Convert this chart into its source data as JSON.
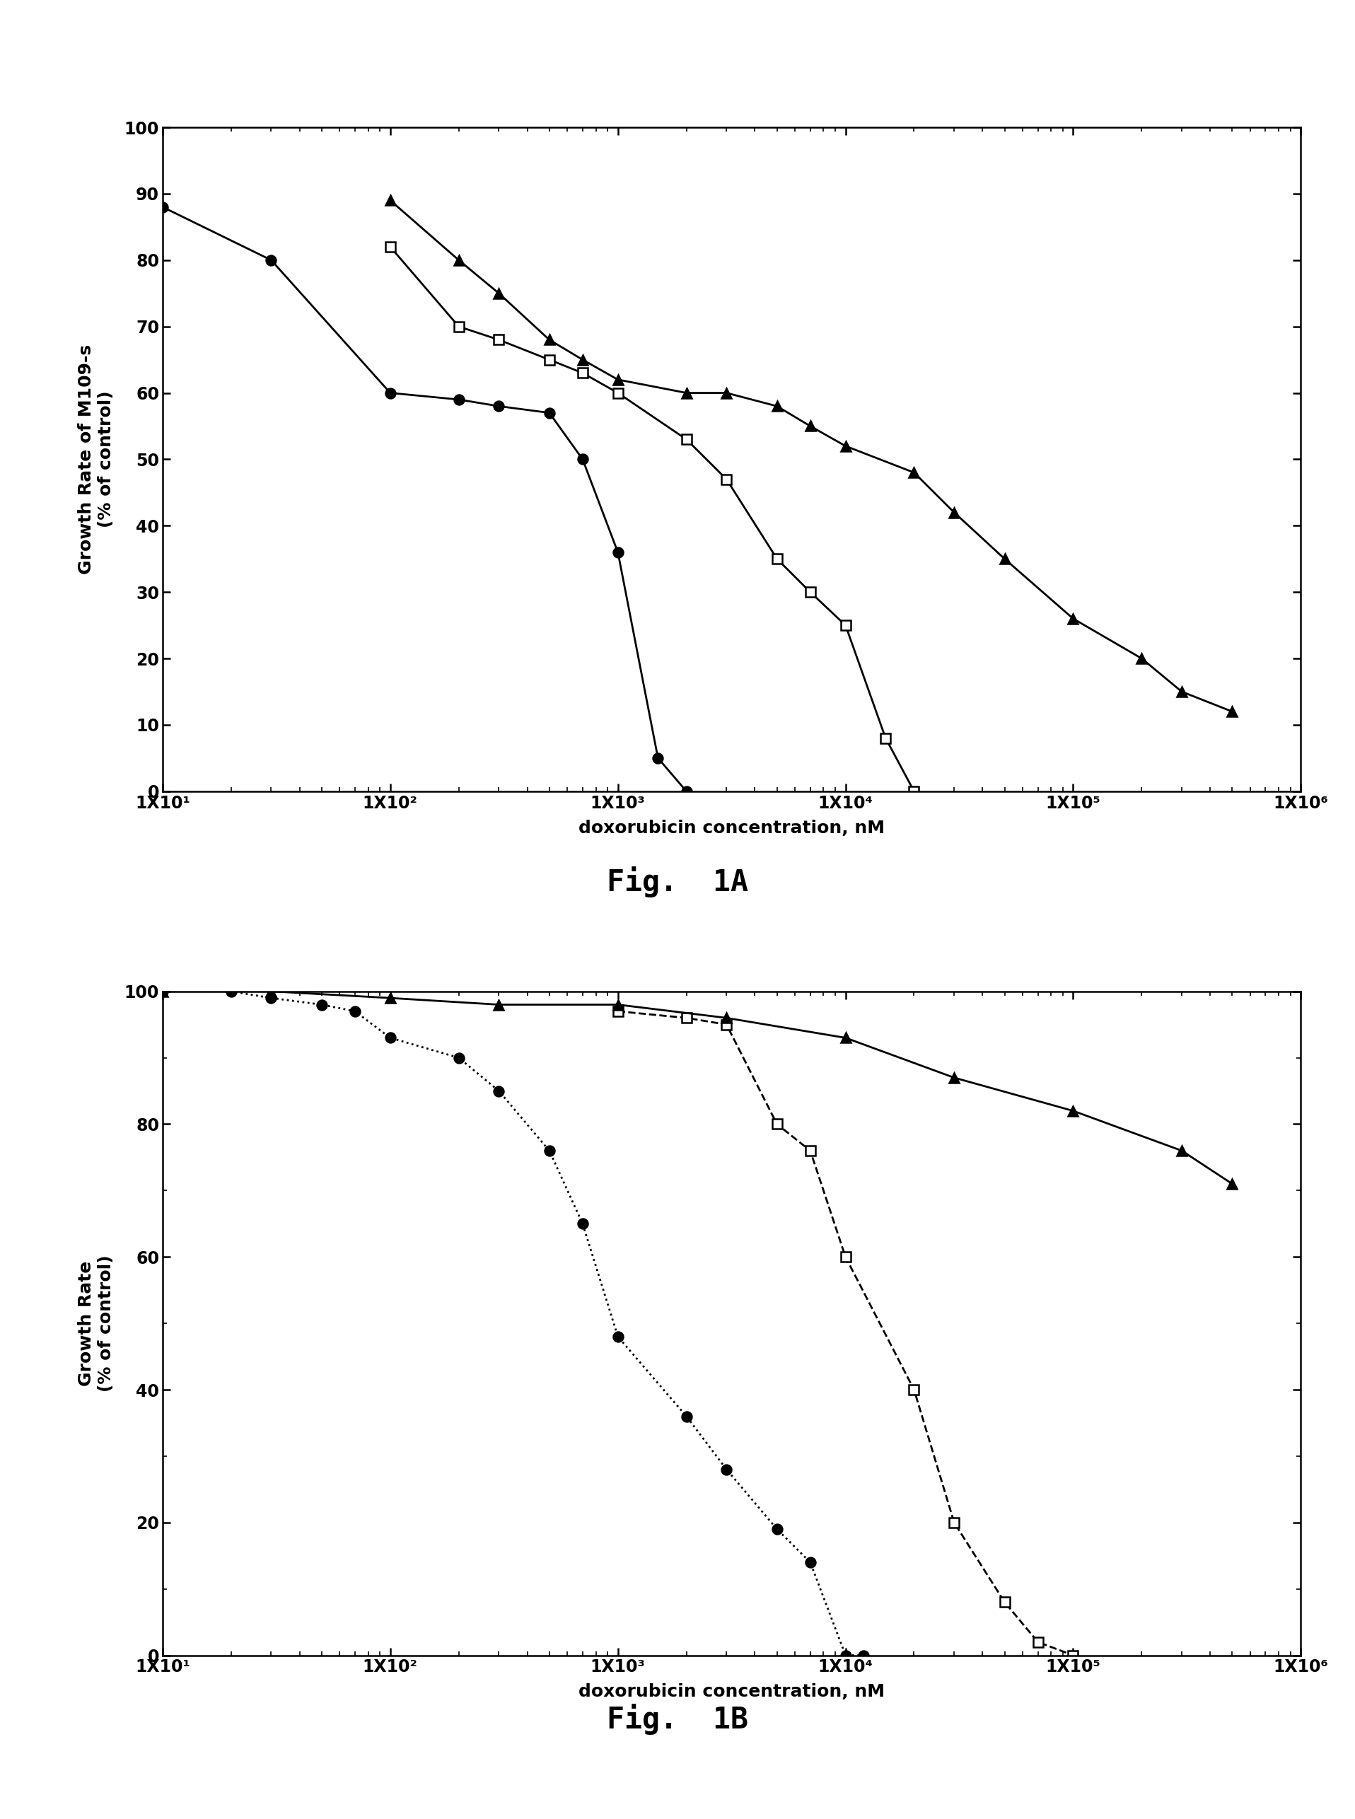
{
  "figA": {
    "title": "Fig.  1A",
    "ylabel": "Growth Rate of M109-s\n(% of control)",
    "xlabel": "doxorubicin concentration, nM",
    "ylim": [
      0,
      100
    ],
    "xlim": [
      10,
      1000000
    ],
    "yticks": [
      0,
      10,
      20,
      30,
      40,
      50,
      60,
      70,
      80,
      90,
      100
    ],
    "xtick_labels": [
      "1X10¹",
      "1X10²",
      "1X10³",
      "1X10⁴",
      "1X10⁵",
      "1X10⁶"
    ],
    "xtick_vals": [
      10,
      100,
      1000,
      10000,
      100000,
      1000000
    ],
    "series": [
      {
        "x": [
          10,
          30,
          100,
          200,
          300,
          500,
          700,
          1000,
          1500,
          2000
        ],
        "y": [
          88,
          80,
          60,
          59,
          58,
          57,
          50,
          36,
          5,
          0
        ],
        "marker": "o",
        "fillstyle": "full",
        "color": "black",
        "linestyle": "-",
        "markersize": 10
      },
      {
        "x": [
          100,
          200,
          300,
          500,
          700,
          1000,
          2000,
          3000,
          5000,
          7000,
          10000,
          15000,
          20000
        ],
        "y": [
          82,
          70,
          68,
          65,
          63,
          60,
          53,
          47,
          35,
          30,
          25,
          8,
          0
        ],
        "marker": "s",
        "fillstyle": "none",
        "color": "black",
        "linestyle": "-",
        "markersize": 10
      },
      {
        "x": [
          100,
          200,
          300,
          500,
          700,
          1000,
          2000,
          3000,
          5000,
          7000,
          10000,
          20000,
          30000,
          50000,
          100000,
          200000,
          300000,
          500000
        ],
        "y": [
          89,
          80,
          75,
          68,
          65,
          62,
          60,
          60,
          58,
          55,
          52,
          48,
          42,
          35,
          26,
          20,
          15,
          12
        ],
        "marker": "^",
        "fillstyle": "full",
        "color": "black",
        "linestyle": "-",
        "markersize": 10
      }
    ]
  },
  "figB": {
    "title": "Fig.  1B",
    "ylabel": "Growth Rate\n(% of control)",
    "xlabel": "doxorubicin concentration, nM",
    "ylim": [
      0,
      100
    ],
    "xlim": [
      10,
      1000000
    ],
    "yticks": [
      0,
      20,
      40,
      60,
      80,
      100
    ],
    "xtick_labels": [
      "1X10¹",
      "1X10²",
      "1X10³",
      "1X10⁴",
      "1X10⁵",
      "1X10⁶"
    ],
    "xtick_vals": [
      10,
      100,
      1000,
      10000,
      100000,
      1000000
    ],
    "series": [
      {
        "x": [
          10,
          20,
          30,
          50,
          70,
          100,
          200,
          300,
          500,
          700,
          1000,
          2000,
          3000,
          5000,
          7000,
          10000,
          12000
        ],
        "y": [
          100,
          100,
          99,
          98,
          97,
          93,
          90,
          85,
          76,
          65,
          48,
          36,
          28,
          19,
          14,
          0,
          0
        ],
        "marker": "o",
        "fillstyle": "full",
        "color": "black",
        "linestyle": ":",
        "markersize": 10
      },
      {
        "x": [
          1000,
          2000,
          3000,
          5000,
          7000,
          10000,
          20000,
          30000,
          50000,
          70000,
          100000
        ],
        "y": [
          97,
          96,
          95,
          80,
          76,
          60,
          40,
          20,
          8,
          2,
          0
        ],
        "marker": "s",
        "fillstyle": "none",
        "color": "black",
        "linestyle": "--",
        "markersize": 10
      },
      {
        "x": [
          10,
          30,
          100,
          300,
          1000,
          3000,
          10000,
          30000,
          100000,
          300000,
          500000
        ],
        "y": [
          100,
          100,
          99,
          98,
          98,
          96,
          93,
          87,
          82,
          76,
          71
        ],
        "marker": "^",
        "fillstyle": "full",
        "color": "black",
        "linestyle": "-",
        "markersize": 10
      }
    ]
  },
  "background_color": "#ffffff",
  "label_fontsize": 18,
  "tick_fontsize": 17,
  "fig_label_fontsize": 30,
  "linewidth": 2.0,
  "marker_edge_width": 1.8
}
